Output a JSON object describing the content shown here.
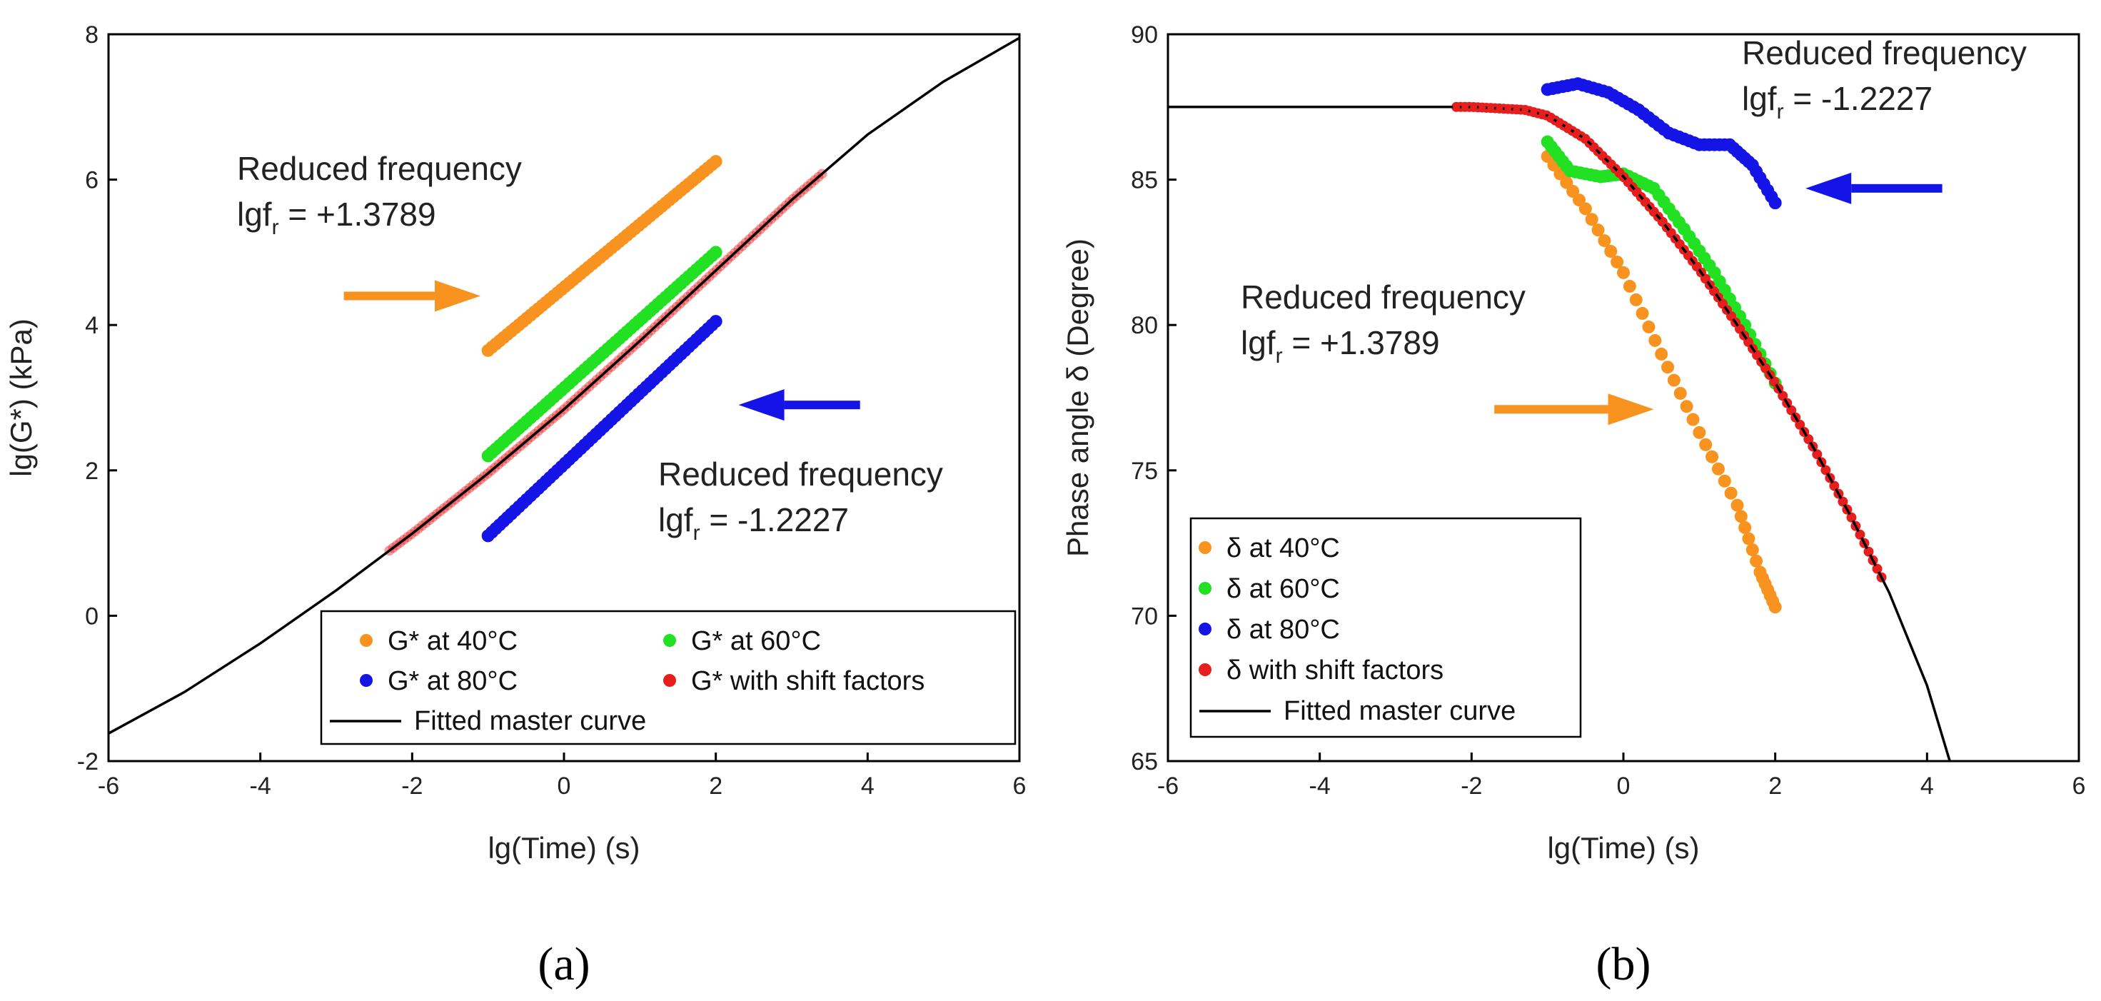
{
  "colors": {
    "orange": "#F7931E",
    "green": "#22E022",
    "blue": "#1414E6",
    "red": "#E61E1E",
    "black": "#000000"
  },
  "chart_data": [
    {
      "panel": "(a)",
      "type": "scatter",
      "xlabel": "lg(Time) (s)",
      "ylabel": "lg(G*) (kPa)",
      "xlim": [
        -6,
        6
      ],
      "ylim": [
        -2,
        8
      ],
      "xticks": [
        "-6",
        "-4",
        "-2",
        "0",
        "2",
        "4",
        "6"
      ],
      "yticks": [
        "-2",
        "0",
        "2",
        "4",
        "6",
        "8"
      ],
      "annotations": [
        {
          "id": "upper",
          "title": "Reduced frequency",
          "value": "lgf",
          "sub": "r",
          "rest": " = +1.3789"
        },
        {
          "id": "lower",
          "title": "Reduced frequency",
          "value": "lgf",
          "sub": "r",
          "rest": " = -1.2227"
        }
      ],
      "arrows": [
        {
          "id": "right",
          "color": "orange",
          "from": [
            -2.9,
            4.4
          ],
          "to": [
            -1.1,
            4.4
          ]
        },
        {
          "id": "left",
          "color": "blue",
          "from": [
            3.9,
            2.9
          ],
          "to": [
            2.3,
            2.9
          ]
        }
      ],
      "legend": [
        "G* at 40°C",
        "G* at 60°C",
        "G* at 80°C",
        "G* with shift factors",
        "Fitted master curve"
      ],
      "series": [
        {
          "name": "G* at 40°C",
          "color": "orange",
          "x_range": [
            -1.0,
            2.0
          ],
          "y_range": [
            3.65,
            6.25
          ],
          "n": 60
        },
        {
          "name": "G* at 60°C",
          "color": "green",
          "x_range": [
            -1.0,
            2.0
          ],
          "y_range": [
            2.2,
            5.0
          ],
          "n": 60
        },
        {
          "name": "G* at 80°C",
          "color": "blue",
          "x_range": [
            -1.0,
            2.0
          ],
          "y_range": [
            1.1,
            4.05
          ],
          "n": 60
        },
        {
          "name": "G* with shift factors",
          "color": "red",
          "x_range": [
            -2.3,
            3.4
          ],
          "n": 120
        },
        {
          "name": "Fitted master curve",
          "color": "black",
          "line": true,
          "points": [
            [
              -6,
              -1.62
            ],
            [
              -5,
              -1.05
            ],
            [
              -4,
              -0.38
            ],
            [
              -3,
              0.35
            ],
            [
              -2,
              1.13
            ],
            [
              -1,
              1.96
            ],
            [
              0,
              2.84
            ],
            [
              1,
              3.78
            ],
            [
              2,
              4.75
            ],
            [
              3,
              5.72
            ],
            [
              4,
              6.62
            ],
            [
              5,
              7.35
            ],
            [
              6,
              7.95
            ]
          ]
        }
      ]
    },
    {
      "panel": "(b)",
      "type": "scatter",
      "xlabel": "lg(Time) (s)",
      "ylabel": "Phase angle δ (Degree)",
      "xlim": [
        -6,
        6
      ],
      "ylim": [
        65,
        90
      ],
      "xticks": [
        "-6",
        "-4",
        "-2",
        "0",
        "2",
        "4",
        "6"
      ],
      "yticks": [
        "65",
        "70",
        "75",
        "80",
        "85",
        "90"
      ],
      "annotations": [
        {
          "id": "upper",
          "title": "Reduced frequency",
          "value": "lgf",
          "sub": "r",
          "rest": " = -1.2227"
        },
        {
          "id": "lower",
          "title": "Reduced frequency",
          "value": "lgf",
          "sub": "r",
          "rest": " = +1.3789"
        }
      ],
      "arrows": [
        {
          "id": "left",
          "color": "blue",
          "from": [
            4.2,
            84.7
          ],
          "to": [
            2.4,
            84.7
          ]
        },
        {
          "id": "right",
          "color": "orange",
          "from": [
            -1.7,
            77.1
          ],
          "to": [
            0.4,
            77.1
          ]
        }
      ],
      "legend": [
        "δ at 40°C",
        "δ at 60°C",
        "δ at 80°C",
        "δ with shift factors",
        "Fitted master curve"
      ],
      "series": [
        {
          "name": "δ at 40°C",
          "color": "orange",
          "points": [
            [
              -1.0,
              85.8
            ],
            [
              -0.5,
              84.0
            ],
            [
              0.0,
              81.8
            ],
            [
              0.5,
              79.0
            ],
            [
              1.0,
              76.3
            ],
            [
              1.5,
              73.8
            ],
            [
              1.8,
              71.5
            ],
            [
              2.0,
              70.3
            ]
          ]
        },
        {
          "name": "δ at 60°C",
          "color": "green",
          "points": [
            [
              -1.0,
              86.3
            ],
            [
              -0.7,
              85.3
            ],
            [
              -0.3,
              85.1
            ],
            [
              0.0,
              85.2
            ],
            [
              0.4,
              84.7
            ],
            [
              0.8,
              83.3
            ],
            [
              1.2,
              81.8
            ],
            [
              1.6,
              80.0
            ],
            [
              2.0,
              78.0
            ]
          ]
        },
        {
          "name": "δ at 80°C",
          "color": "blue",
          "points": [
            [
              -1.0,
              88.1
            ],
            [
              -0.6,
              88.3
            ],
            [
              -0.2,
              88.0
            ],
            [
              0.2,
              87.4
            ],
            [
              0.6,
              86.6
            ],
            [
              1.0,
              86.2
            ],
            [
              1.4,
              86.2
            ],
            [
              1.7,
              85.5
            ],
            [
              2.0,
              84.2
            ]
          ]
        },
        {
          "name": "δ with shift factors",
          "color": "red",
          "x_range": [
            -2.2,
            3.4
          ],
          "n": 100
        },
        {
          "name": "Fitted master curve",
          "color": "black",
          "line": true,
          "points": [
            [
              -6,
              87.5
            ],
            [
              -2,
              87.5
            ],
            [
              -1.3,
              87.4
            ],
            [
              -1,
              87.2
            ],
            [
              -0.5,
              86.4
            ],
            [
              0,
              85.1
            ],
            [
              0.5,
              83.6
            ],
            [
              1,
              81.9
            ],
            [
              1.5,
              80.0
            ],
            [
              2,
              78.0
            ],
            [
              2.5,
              75.8
            ],
            [
              3,
              73.4
            ],
            [
              3.5,
              70.8
            ],
            [
              4,
              67.6
            ],
            [
              4.3,
              65.0
            ]
          ]
        }
      ]
    }
  ]
}
